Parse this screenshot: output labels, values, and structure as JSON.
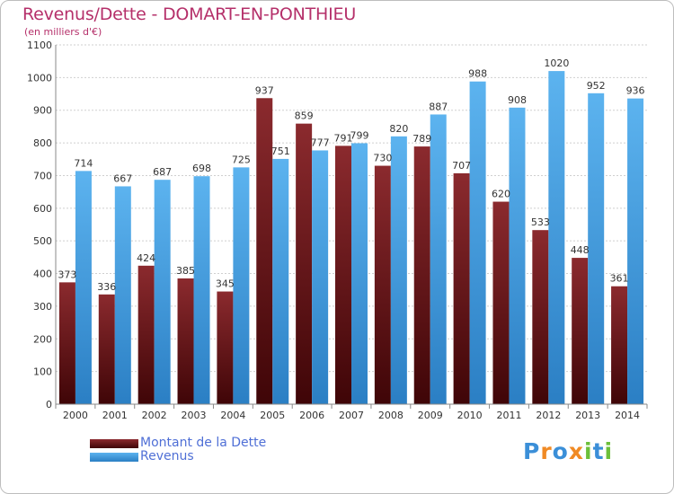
{
  "header": {
    "title": "Revenus/Dette - DOMART-EN-PONTHIEU",
    "subtitle": "(en milliers d'€)"
  },
  "colors": {
    "dette": "#7a1e22",
    "revenus": "#4ea6e6",
    "title": "#b5306a",
    "legend_text": "#4f6fd6"
  },
  "logo": {
    "text": "Proxiti",
    "letters": [
      "P",
      "r",
      "o",
      "x",
      "i",
      "t",
      "i"
    ],
    "letter_colors": [
      "#3b8fd8",
      "#f08a24",
      "#3b8fd8",
      "#f08a24",
      "#6cbf3a",
      "#3b8fd8",
      "#6cbf3a"
    ]
  },
  "chart_data": {
    "type": "bar",
    "title": "Revenus/Dette - DOMART-EN-PONTHIEU",
    "subtitle": "(en milliers d'€)",
    "xlabel": "",
    "ylabel": "",
    "ylim": [
      0,
      1100
    ],
    "yticks": [
      0,
      100,
      200,
      300,
      400,
      500,
      600,
      700,
      800,
      900,
      1000,
      1100
    ],
    "grid": true,
    "legend_position": "bottom-left",
    "categories": [
      "2000",
      "2001",
      "2002",
      "2003",
      "2004",
      "2005",
      "2006",
      "2007",
      "2008",
      "2009",
      "2010",
      "2011",
      "2012",
      "2013",
      "2014"
    ],
    "series": [
      {
        "name": "Montant de la Dette",
        "color": "#7a1e22",
        "values": [
          373,
          336,
          424,
          385,
          345,
          937,
          859,
          791,
          730,
          789,
          707,
          620,
          533,
          448,
          361
        ]
      },
      {
        "name": "Revenus",
        "color": "#4ea6e6",
        "values": [
          714,
          667,
          687,
          698,
          725,
          751,
          777,
          799,
          820,
          887,
          988,
          908,
          1020,
          952,
          936
        ]
      }
    ]
  }
}
